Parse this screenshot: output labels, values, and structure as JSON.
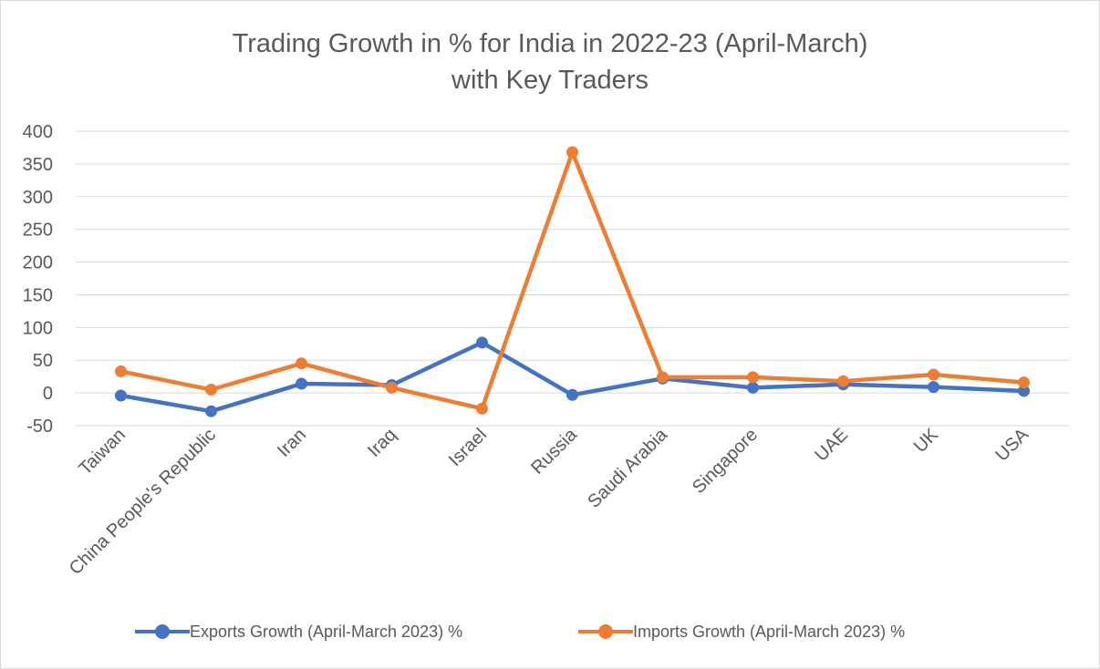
{
  "chart_data": {
    "type": "line",
    "title_line1": "Trading Growth in % for India in 2022-23 (April-March)",
    "title_line2": "with Key Traders",
    "categories": [
      "Taiwan",
      "China People's Republic",
      "Iran",
      "Iraq",
      "Israel",
      "Russia",
      "Saudi Arabia",
      "Singapore",
      "UAE",
      "UK",
      "USA"
    ],
    "series": [
      {
        "name": "Exports Growth (April-March 2023) %",
        "color": "#4472C4",
        "values": [
          -4,
          -28,
          14,
          12,
          77,
          -3,
          22,
          8,
          13,
          9,
          3
        ]
      },
      {
        "name": "Imports Growth (April-March 2023) %",
        "color": "#ED7D31",
        "values": [
          33,
          5,
          45,
          8,
          -24,
          368,
          24,
          24,
          18,
          28,
          16
        ]
      }
    ],
    "ylim": [
      -50,
      400
    ],
    "yticks": [
      -50,
      0,
      50,
      100,
      150,
      200,
      250,
      300,
      350,
      400
    ],
    "grid": true,
    "legend_position": "bottom"
  }
}
